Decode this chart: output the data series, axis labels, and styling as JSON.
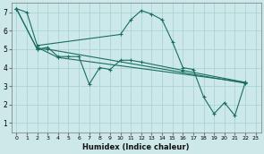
{
  "xlabel": "Humidex (Indice chaleur)",
  "bg_color": "#cce8e8",
  "grid_color": "#aad4d4",
  "line_color": "#1a6e60",
  "xlim": [
    -0.5,
    23.5
  ],
  "ylim": [
    0.5,
    7.5
  ],
  "yticks": [
    1,
    2,
    3,
    4,
    5,
    6,
    7
  ],
  "xticks": [
    0,
    1,
    2,
    3,
    4,
    5,
    6,
    7,
    8,
    9,
    10,
    11,
    12,
    13,
    14,
    15,
    16,
    17,
    18,
    19,
    20,
    21,
    22,
    23
  ],
  "lines": [
    {
      "x": [
        0,
        1,
        2,
        10,
        11,
        12,
        13,
        14,
        15,
        16,
        17,
        18,
        19,
        20,
        21,
        22
      ],
      "y": [
        7.2,
        7.0,
        5.2,
        5.8,
        6.6,
        7.1,
        6.9,
        6.6,
        5.4,
        4.0,
        3.9,
        2.4,
        1.5,
        2.1,
        1.4,
        3.2
      ]
    },
    {
      "x": [
        0,
        2,
        3,
        4,
        5,
        6,
        7,
        8,
        9,
        10,
        11,
        12,
        16,
        22
      ],
      "y": [
        7.2,
        5.0,
        5.1,
        4.6,
        4.6,
        4.6,
        3.1,
        4.0,
        3.9,
        4.4,
        4.4,
        4.3,
        3.85,
        3.2
      ]
    },
    {
      "x": [
        0,
        2,
        3,
        22
      ],
      "y": [
        7.2,
        5.0,
        5.0,
        3.15
      ]
    },
    {
      "x": [
        2,
        4,
        22
      ],
      "y": [
        5.1,
        4.55,
        3.2
      ]
    }
  ]
}
